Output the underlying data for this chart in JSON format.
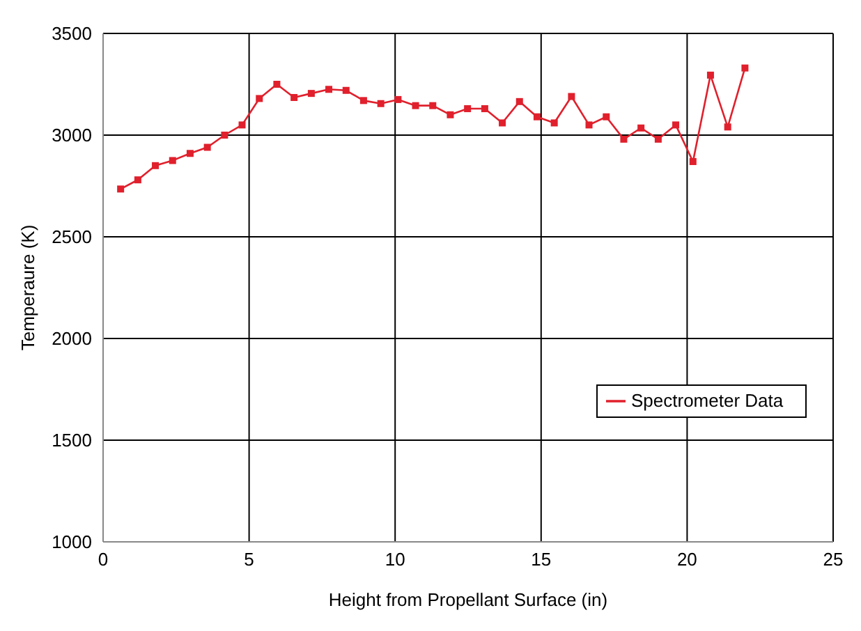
{
  "chart_data": {
    "type": "line",
    "xlabel": "Height from Propellant Surface (in)",
    "ylabel": "Temperaure (K)",
    "x": [
      0.6,
      1.19,
      1.79,
      2.38,
      2.98,
      3.57,
      4.16,
      4.76,
      5.35,
      5.95,
      6.54,
      7.13,
      7.73,
      8.32,
      8.92,
      9.51,
      10.1,
      10.7,
      11.29,
      11.89,
      12.48,
      13.07,
      13.67,
      14.26,
      14.86,
      15.45,
      16.04,
      16.64,
      17.23,
      17.83,
      18.42,
      19.01,
      19.61,
      20.2,
      20.8,
      21.39,
      21.98
    ],
    "series": [
      {
        "name": "Spectrometer Data",
        "color": "#e0202c",
        "values": [
          2735,
          2780,
          2850,
          2875,
          2910,
          2940,
          3000,
          3050,
          3180,
          3250,
          3185,
          3205,
          3225,
          3220,
          3170,
          3155,
          3175,
          3145,
          3145,
          3100,
          3130,
          3130,
          3060,
          3165,
          3090,
          3060,
          3190,
          3050,
          3090,
          2980,
          3035,
          2980,
          3050,
          2870,
          3295,
          3040,
          3330
        ]
      }
    ],
    "xlim": [
      0,
      25
    ],
    "xticks": [
      0,
      5,
      10,
      15,
      20,
      25
    ],
    "ylim": [
      1000,
      3500
    ],
    "yticks": [
      1000,
      1500,
      2000,
      2500,
      3000,
      3500
    ],
    "grid": true,
    "legend": "right",
    "marker": "square",
    "line_style": "solid"
  }
}
